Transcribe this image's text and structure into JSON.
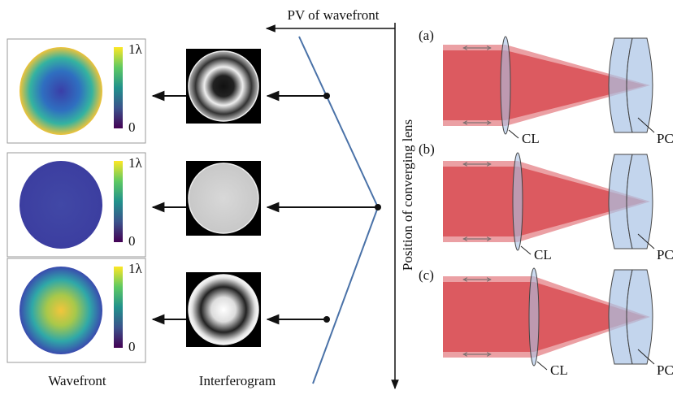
{
  "header": {
    "pv_label": "PV of wavefront",
    "axis_label": "Position of converging lens"
  },
  "wavefront_panels": [
    {
      "max": "1λ",
      "min": "0"
    },
    {
      "max": "1λ",
      "min": "0"
    },
    {
      "max": "1λ",
      "min": "0"
    }
  ],
  "column_labels": {
    "wavefront": "Wavefront",
    "interferogram": "Interferogram"
  },
  "optics_panels": [
    {
      "label": "(a)",
      "lens": "CL",
      "plate": "PC"
    },
    {
      "label": "(b)",
      "lens": "CL",
      "plate": "PC"
    },
    {
      "label": "(c)",
      "lens": "CL",
      "plate": "PC"
    }
  ]
}
